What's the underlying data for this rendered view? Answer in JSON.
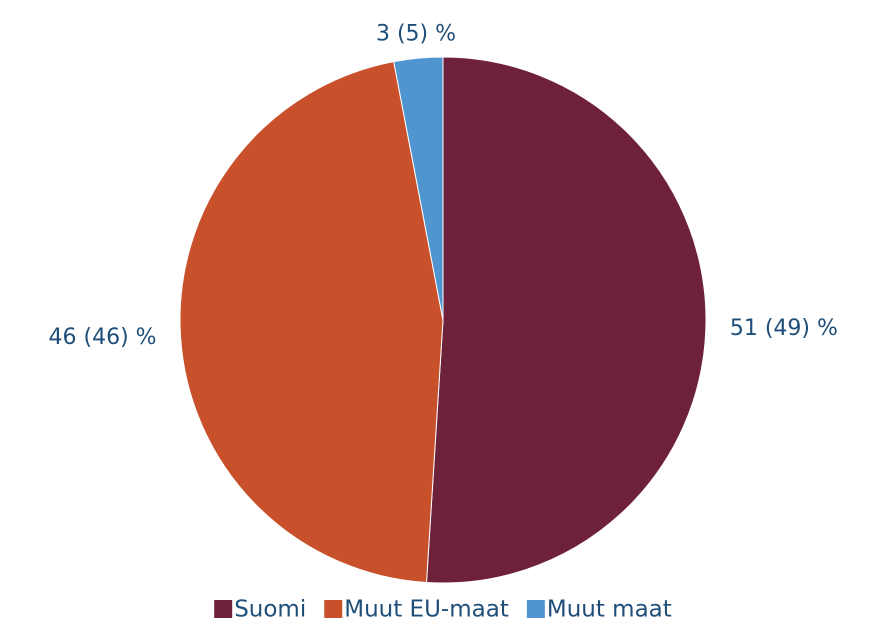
{
  "chart_data": {
    "type": "pie",
    "categories": [
      "Suomi",
      "Muut EU-maat",
      "Muut maat"
    ],
    "values": [
      51,
      46,
      3
    ],
    "value_labels": [
      "51 (49) %",
      "46 (46) %",
      "3 (5) %"
    ],
    "colors": [
      "#6d213a",
      "#c8502a",
      "#4f95cf"
    ],
    "legend": "bottom"
  }
}
